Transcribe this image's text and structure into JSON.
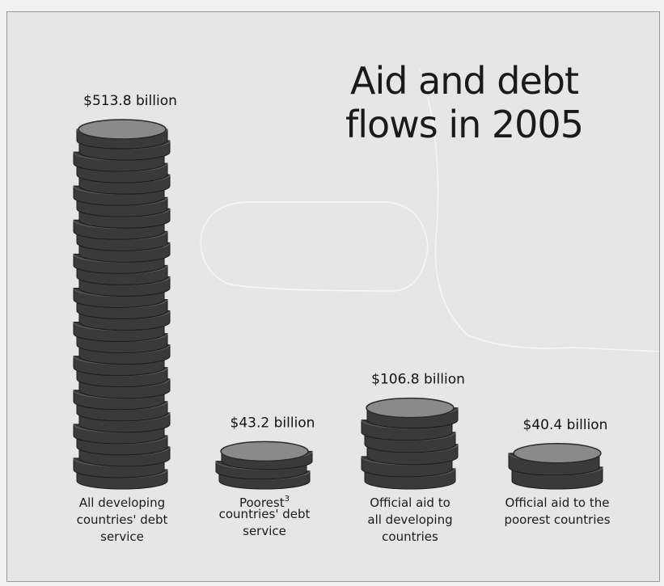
{
  "chart_data": {
    "type": "bar",
    "title_lines": [
      "Aid and debt",
      "flows in 2005"
    ],
    "categories": [
      {
        "lines": [
          "All developing",
          "countries' debt",
          "service"
        ]
      },
      {
        "lines": [
          "Poorest",
          "countries' debt",
          "service"
        ],
        "superscript": "3"
      },
      {
        "lines": [
          "Official aid to",
          "all developing",
          "countries"
        ]
      },
      {
        "lines": [
          "Official aid to the",
          "poorest countries"
        ]
      }
    ],
    "values": [
      513.8,
      43.2,
      106.8,
      40.4
    ],
    "value_labels": [
      "$513.8 billion",
      "$43.2 billion",
      "$106.8 billion",
      "$40.4 billion"
    ],
    "unit": "billion US$",
    "colors": {
      "coin_side": "#3a3a3a",
      "coin_top": "#8a8a8a",
      "background": "#e6e6e6"
    }
  }
}
